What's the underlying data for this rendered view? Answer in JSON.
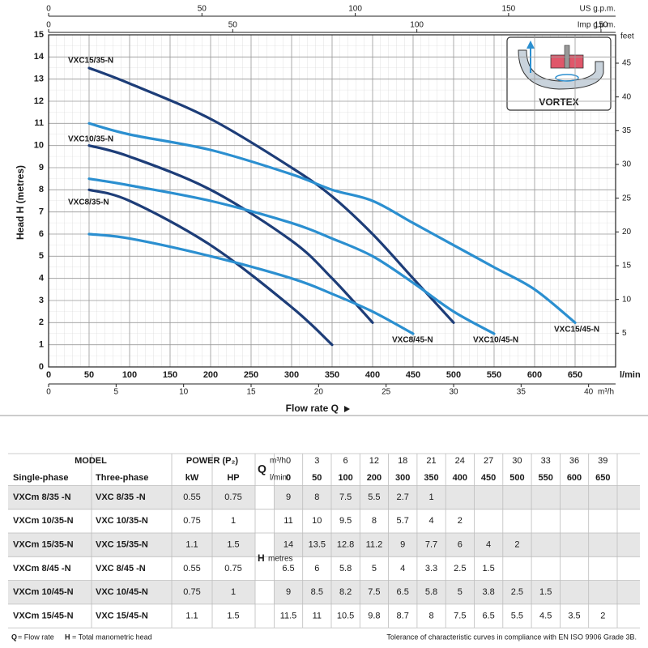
{
  "chart_data": {
    "type": "line",
    "x_label": "Flow rate  Q",
    "x_unit": "l/min",
    "y_label": "Head H  (metres)",
    "xlim": [
      0,
      700
    ],
    "xticks": [
      0,
      50,
      100,
      150,
      200,
      250,
      300,
      350,
      400,
      450,
      500,
      550,
      600,
      650
    ],
    "ylim": [
      0,
      15
    ],
    "yticks": [
      0,
      1,
      2,
      3,
      4,
      5,
      6,
      7,
      8,
      9,
      10,
      11,
      12,
      13,
      14,
      15
    ],
    "grid": true,
    "x": [
      50,
      100,
      200,
      300,
      350,
      400,
      450,
      500,
      550,
      600,
      650
    ],
    "series": [
      {
        "name": "VXC8/35-N",
        "color": "#1d3d78",
        "values": [
          8,
          7.5,
          5.5,
          2.7,
          1,
          null,
          null,
          null,
          null,
          null,
          null
        ]
      },
      {
        "name": "VXC10/35-N",
        "color": "#1d3d78",
        "values": [
          10,
          9.5,
          8,
          5.7,
          4,
          2,
          null,
          null,
          null,
          null,
          null
        ]
      },
      {
        "name": "VXC15/35-N",
        "color": "#1d3d78",
        "values": [
          13.5,
          12.8,
          11.2,
          9,
          7.7,
          6,
          4,
          2,
          null,
          null,
          null
        ]
      },
      {
        "name": "VXC8/45-N",
        "color": "#2b8fd0",
        "values": [
          6,
          5.8,
          5,
          4,
          3.3,
          2.5,
          1.5,
          null,
          null,
          null,
          null
        ]
      },
      {
        "name": "VXC10/45-N",
        "color": "#2b8fd0",
        "values": [
          8.5,
          8.2,
          7.5,
          6.5,
          5.8,
          5,
          3.8,
          2.5,
          1.5,
          null,
          null
        ]
      },
      {
        "name": "VXC15/45-N",
        "color": "#2b8fd0",
        "values": [
          11,
          10.5,
          9.8,
          8.7,
          8,
          7.5,
          6.5,
          5.5,
          4.5,
          3.5,
          2
        ]
      }
    ],
    "top_axes": [
      {
        "label": "US g.p.m.",
        "xlim": [
          0,
          184.9
        ],
        "xticks": [
          0,
          50,
          100,
          150
        ]
      },
      {
        "label": "Imp g.p.m.",
        "xlim": [
          0,
          153.97
        ],
        "xticks": [
          0,
          50,
          100,
          150
        ]
      }
    ],
    "bottom_axis": {
      "label": "m³/h",
      "xlim": [
        0,
        42
      ],
      "xticks": [
        0,
        5,
        10,
        15,
        20,
        25,
        30,
        35,
        40
      ]
    },
    "right_axis": {
      "label": "feet",
      "ylim": [
        0,
        49.2
      ],
      "yticks": [
        5,
        10,
        15,
        20,
        25,
        30,
        35,
        40,
        45
      ]
    },
    "inset_label": "VORTEX"
  },
  "table": {
    "header": {
      "model": "MODEL",
      "power": "POWER (P₂)",
      "single": "Single-phase",
      "three": "Three-phase",
      "kw": "kW",
      "hp": "HP",
      "q": "Q",
      "m3h": "m³/h",
      "lmin": "l/min",
      "h": "H",
      "h_unit": "metres"
    },
    "m3h": [
      0,
      3,
      6,
      12,
      18,
      21,
      24,
      27,
      30,
      33,
      36,
      39
    ],
    "lmin": [
      0,
      50,
      100,
      200,
      300,
      350,
      400,
      450,
      500,
      550,
      600,
      650
    ],
    "rows": [
      {
        "single": "VXCm 8/35  -N",
        "three": "VXC 8/35  -N",
        "kw": 0.55,
        "hp": 0.75,
        "h": [
          9,
          8,
          7.5,
          5.5,
          2.7,
          1
        ]
      },
      {
        "single": "VXCm 10/35-N",
        "three": "VXC 10/35-N",
        "kw": 0.75,
        "hp": 1,
        "h": [
          11,
          10,
          9.5,
          8,
          5.7,
          4,
          2
        ]
      },
      {
        "single": "VXCm 15/35-N",
        "three": "VXC 15/35-N",
        "kw": 1.1,
        "hp": 1.5,
        "h": [
          14,
          13.5,
          12.8,
          11.2,
          9,
          7.7,
          6,
          4,
          2
        ]
      },
      {
        "single": "VXCm 8/45  -N",
        "three": "VXC 8/45  -N",
        "kw": 0.55,
        "hp": 0.75,
        "h": [
          6.5,
          6,
          5.8,
          5,
          4,
          3.3,
          2.5,
          1.5
        ]
      },
      {
        "single": "VXCm 10/45-N",
        "three": "VXC 10/45-N",
        "kw": 0.75,
        "hp": 1,
        "h": [
          9,
          8.5,
          8.2,
          7.5,
          6.5,
          5.8,
          5,
          3.8,
          2.5,
          1.5
        ]
      },
      {
        "single": "VXCm 15/45-N",
        "three": "VXC 15/45-N",
        "kw": 1.1,
        "hp": 1.5,
        "h": [
          11.5,
          11,
          10.5,
          9.8,
          8.7,
          8,
          7.5,
          6.5,
          5.5,
          4.5,
          3.5,
          2
        ]
      }
    ]
  },
  "footer": {
    "q": "Q",
    "q_text": "= Flow rate",
    "h": "H",
    "h_text": "= Total manometric head",
    "note": "Tolerance of characteristic curves in compliance with EN ISO 9906 Grade 3B."
  }
}
